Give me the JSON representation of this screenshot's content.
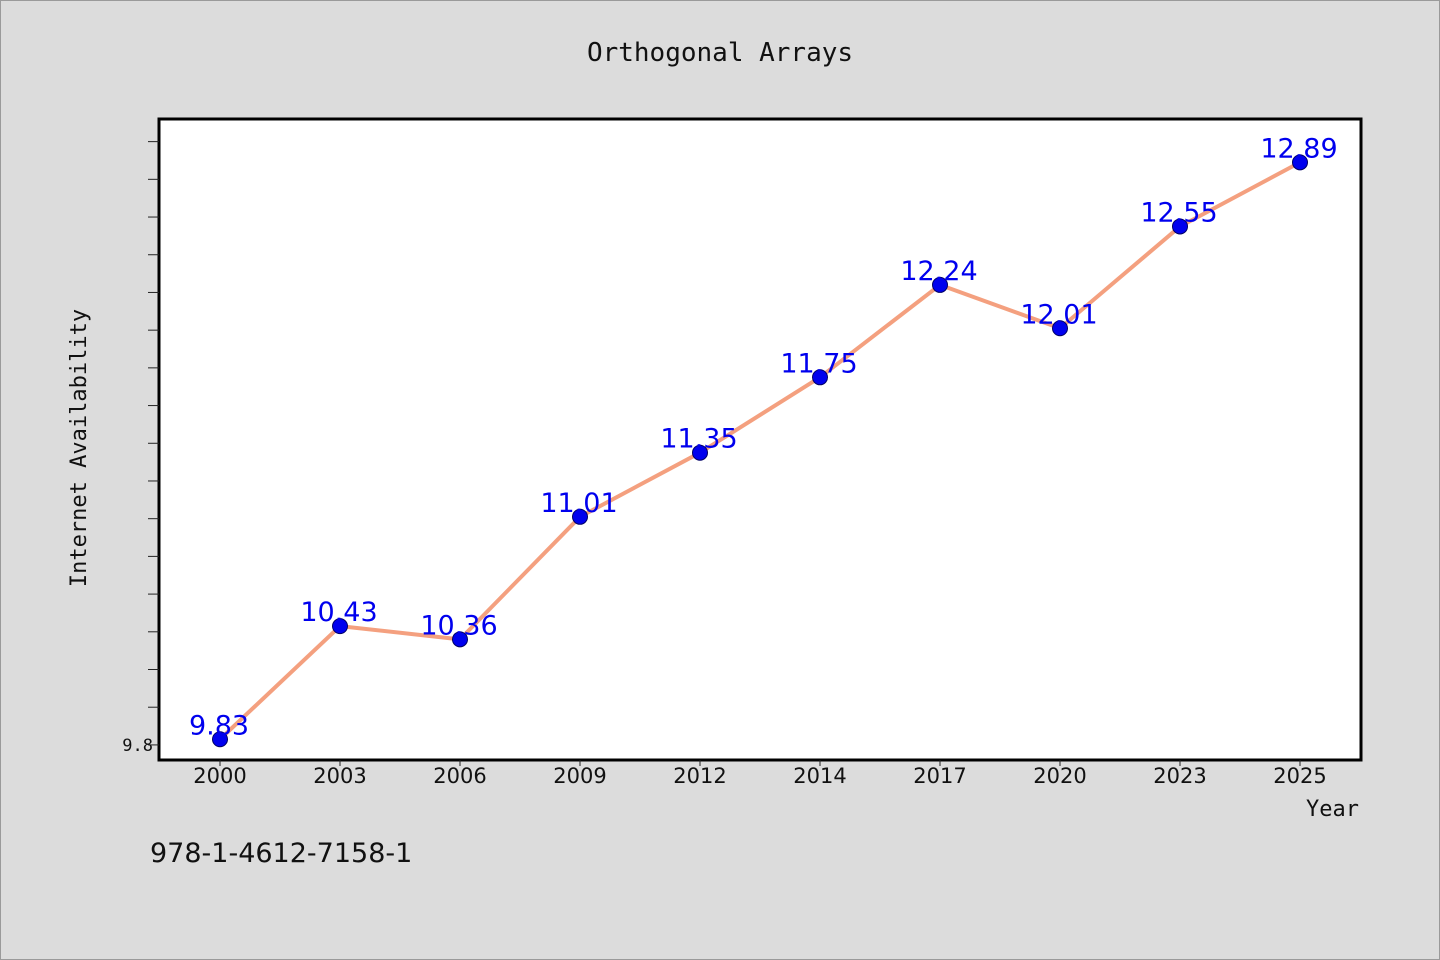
{
  "chart_data": {
    "type": "line",
    "title": "Orthogonal Arrays",
    "xlabel": "Year",
    "ylabel": "Internet Availability",
    "categories": [
      "2000",
      "2003",
      "2006",
      "2009",
      "2012",
      "2014",
      "2017",
      "2020",
      "2023",
      "2025"
    ],
    "series": [
      {
        "values": [
          9.83,
          10.43,
          10.36,
          11.01,
          11.35,
          11.75,
          12.24,
          12.01,
          12.55,
          12.89
        ]
      }
    ],
    "data_labels": [
      "9.83",
      "10.43",
      "10.36",
      "11.01",
      "11.35",
      "11.75",
      "12.24",
      "12.01",
      "12.55",
      "12.89"
    ],
    "ytick_labels": [
      "9.8"
    ],
    "ylim": [
      9.72,
      13.12
    ],
    "grid": false,
    "line_color": "#f4a07f",
    "marker_color": "#0000ee",
    "label_color": "#0000ee"
  },
  "footer": {
    "isbn": "978-1-4612-7158-1"
  }
}
